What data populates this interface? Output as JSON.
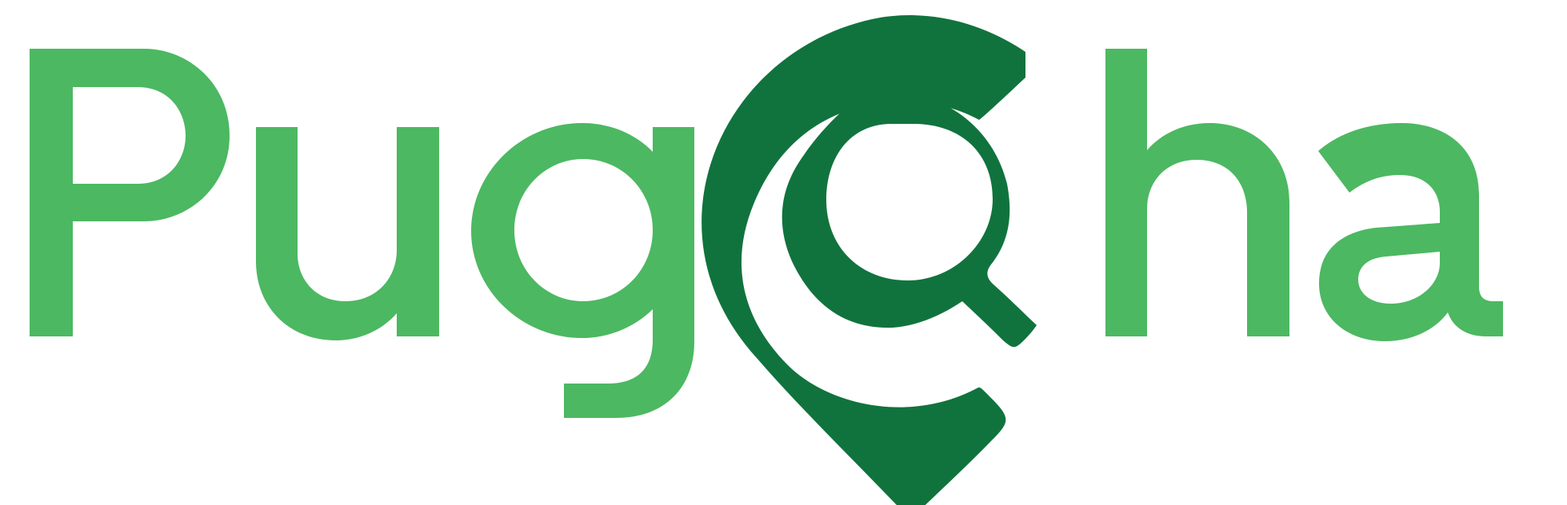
{
  "logo": {
    "wordmark": "PugCha",
    "colors": {
      "light_green": "#4cb862",
      "dark_green": "#10733d",
      "background": "#ffffff"
    },
    "icon": "map-pin-magnifier-icon"
  }
}
